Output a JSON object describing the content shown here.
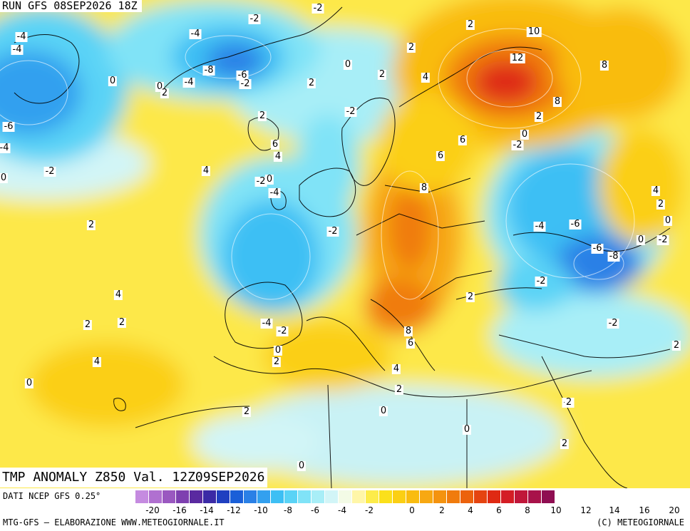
{
  "header": {
    "run_title": "RUN GFS 08SEP2026 18Z",
    "valid_title": "TMP ANOMALY Z850 Val. 12Z09SEP2026"
  },
  "footer": {
    "data_source": "DATI NCEP GFS 0.25°",
    "credit_left": "MTG-GFS – ELABORAZIONE WWW.METEOGIORNALE.IT",
    "credit_right": "(C) METEOGIORNALE"
  },
  "legend": {
    "tick_labels": [
      "-20",
      "-16",
      "-14",
      "-12",
      "-10",
      "-8",
      "-6",
      "-4",
      "-2",
      "0",
      "2",
      "4",
      "6",
      "8",
      "10",
      "12",
      "14",
      "16",
      "20"
    ],
    "colors": [
      "#c58be0",
      "#b070d0",
      "#9a58c0",
      "#7e40b0",
      "#5a2aa0",
      "#3b2aa6",
      "#1f3fc0",
      "#1a5fd8",
      "#2a80e6",
      "#33a0ef",
      "#3dbff4",
      "#5ad3f6",
      "#80e3f7",
      "#a8eef7",
      "#d2f5f7",
      "#f3fbe6",
      "#fff6a8",
      "#fdec4a",
      "#fbe01b",
      "#fbcf14",
      "#f9bc10",
      "#f7a812",
      "#f4930f",
      "#f07b0d",
      "#ec620d",
      "#e54410",
      "#df2a13",
      "#d41d25",
      "#c0173a",
      "#a8124a",
      "#8f0e52"
    ]
  },
  "map_labels": [
    {
      "t": "-2"
    },
    {
      "t": "-4"
    },
    {
      "t": "-4"
    },
    {
      "t": "-4"
    },
    {
      "t": "-2"
    },
    {
      "t": "2"
    },
    {
      "t": "10"
    },
    {
      "t": "12"
    },
    {
      "t": "8"
    },
    {
      "t": "0"
    },
    {
      "t": "-8"
    },
    {
      "t": "-6"
    },
    {
      "t": "-4"
    },
    {
      "t": "-2"
    },
    {
      "t": "0"
    },
    {
      "t": "2"
    },
    {
      "t": "0"
    },
    {
      "t": "2"
    },
    {
      "t": "2"
    },
    {
      "t": "2"
    },
    {
      "t": "4"
    },
    {
      "t": "-2"
    },
    {
      "t": "-6"
    },
    {
      "t": "2"
    },
    {
      "t": "8"
    },
    {
      "t": "2"
    },
    {
      "t": "0"
    },
    {
      "t": "-4"
    },
    {
      "t": "6"
    },
    {
      "t": "-2"
    },
    {
      "t": "6"
    },
    {
      "t": "4"
    },
    {
      "t": "-2"
    },
    {
      "t": "4"
    },
    {
      "t": "6"
    },
    {
      "t": "0"
    },
    {
      "t": "-2"
    },
    {
      "t": "0"
    },
    {
      "t": "-4"
    },
    {
      "t": "8"
    },
    {
      "t": "4"
    },
    {
      "t": "2"
    },
    {
      "t": "-2"
    },
    {
      "t": "-4"
    },
    {
      "t": "-6"
    },
    {
      "t": "0"
    },
    {
      "t": "0"
    },
    {
      "t": "-2"
    },
    {
      "t": "-6"
    },
    {
      "t": "-8"
    },
    {
      "t": "2"
    },
    {
      "t": "4"
    },
    {
      "t": "-2"
    },
    {
      "t": "2"
    },
    {
      "t": "2"
    },
    {
      "t": "2"
    },
    {
      "t": "-4"
    },
    {
      "t": "-2"
    },
    {
      "t": "-2"
    },
    {
      "t": "8"
    },
    {
      "t": "6"
    },
    {
      "t": "0"
    },
    {
      "t": "4"
    },
    {
      "t": "2"
    },
    {
      "t": "4"
    },
    {
      "t": "0"
    },
    {
      "t": "-2"
    },
    {
      "t": "2"
    },
    {
      "t": "2"
    },
    {
      "t": "2"
    },
    {
      "t": "0"
    },
    {
      "t": "0"
    },
    {
      "t": "2"
    },
    {
      "t": "2"
    },
    {
      "t": "0"
    }
  ]
}
